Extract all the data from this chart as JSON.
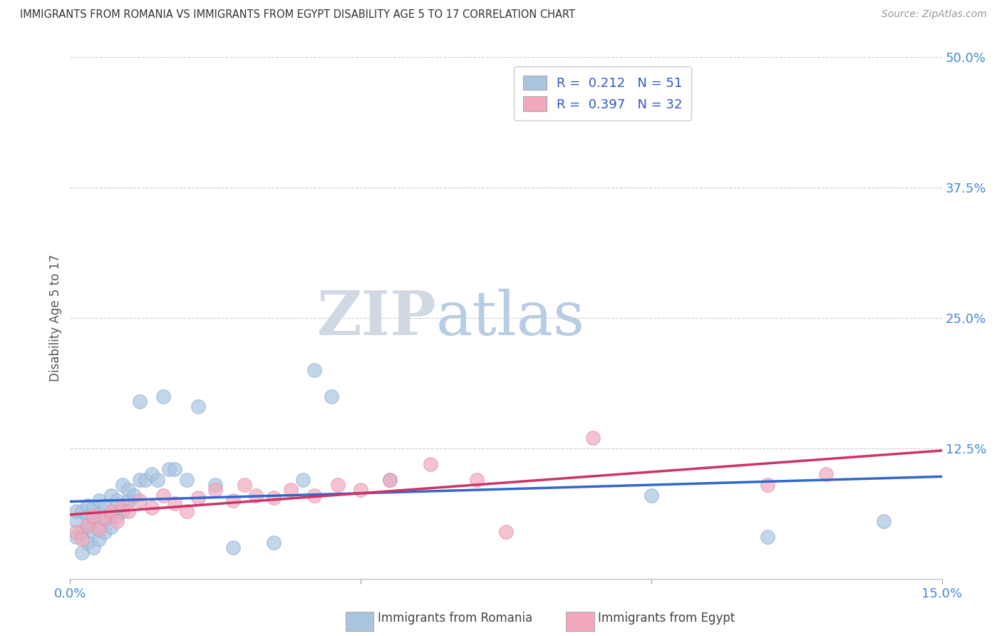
{
  "title": "IMMIGRANTS FROM ROMANIA VS IMMIGRANTS FROM EGYPT DISABILITY AGE 5 TO 17 CORRELATION CHART",
  "source": "Source: ZipAtlas.com",
  "ylabel_label": "Disability Age 5 to 17",
  "xlim": [
    0.0,
    0.15
  ],
  "ylim": [
    0.0,
    0.5
  ],
  "xticks": [
    0.0,
    0.05,
    0.1,
    0.15
  ],
  "yticks": [
    0.0,
    0.125,
    0.25,
    0.375,
    0.5
  ],
  "romania_R": 0.212,
  "romania_N": 51,
  "egypt_R": 0.397,
  "egypt_N": 32,
  "romania_color": "#aac4e0",
  "egypt_color": "#f2a8bc",
  "romania_line_color": "#3366cc",
  "egypt_line_color": "#cc3366",
  "watermark_ZIP": "#d0d8e4",
  "watermark_atlas": "#b8cce4",
  "romania_x": [
    0.001,
    0.001,
    0.001,
    0.002,
    0.002,
    0.002,
    0.003,
    0.003,
    0.003,
    0.003,
    0.004,
    0.004,
    0.004,
    0.004,
    0.005,
    0.005,
    0.005,
    0.005,
    0.006,
    0.006,
    0.006,
    0.007,
    0.007,
    0.007,
    0.008,
    0.008,
    0.009,
    0.009,
    0.01,
    0.01,
    0.011,
    0.012,
    0.012,
    0.013,
    0.014,
    0.015,
    0.016,
    0.017,
    0.018,
    0.02,
    0.022,
    0.025,
    0.028,
    0.035,
    0.04,
    0.042,
    0.045,
    0.055,
    0.1,
    0.12,
    0.14
  ],
  "romania_y": [
    0.04,
    0.055,
    0.065,
    0.025,
    0.045,
    0.065,
    0.035,
    0.05,
    0.06,
    0.07,
    0.03,
    0.045,
    0.058,
    0.068,
    0.038,
    0.05,
    0.062,
    0.075,
    0.045,
    0.058,
    0.07,
    0.05,
    0.062,
    0.08,
    0.06,
    0.075,
    0.065,
    0.09,
    0.075,
    0.085,
    0.08,
    0.095,
    0.17,
    0.095,
    0.1,
    0.095,
    0.175,
    0.105,
    0.105,
    0.095,
    0.165,
    0.09,
    0.03,
    0.035,
    0.095,
    0.2,
    0.175,
    0.095,
    0.08,
    0.04,
    0.055
  ],
  "egypt_x": [
    0.001,
    0.002,
    0.003,
    0.004,
    0.005,
    0.006,
    0.007,
    0.008,
    0.009,
    0.01,
    0.012,
    0.014,
    0.016,
    0.018,
    0.02,
    0.022,
    0.025,
    0.028,
    0.03,
    0.032,
    0.035,
    0.038,
    0.042,
    0.046,
    0.05,
    0.055,
    0.062,
    0.07,
    0.075,
    0.09,
    0.12,
    0.13
  ],
  "egypt_y": [
    0.045,
    0.038,
    0.052,
    0.06,
    0.048,
    0.058,
    0.065,
    0.055,
    0.07,
    0.065,
    0.075,
    0.068,
    0.08,
    0.072,
    0.065,
    0.078,
    0.085,
    0.075,
    0.09,
    0.08,
    0.078,
    0.085,
    0.08,
    0.09,
    0.085,
    0.095,
    0.11,
    0.095,
    0.045,
    0.135,
    0.09,
    0.1
  ]
}
